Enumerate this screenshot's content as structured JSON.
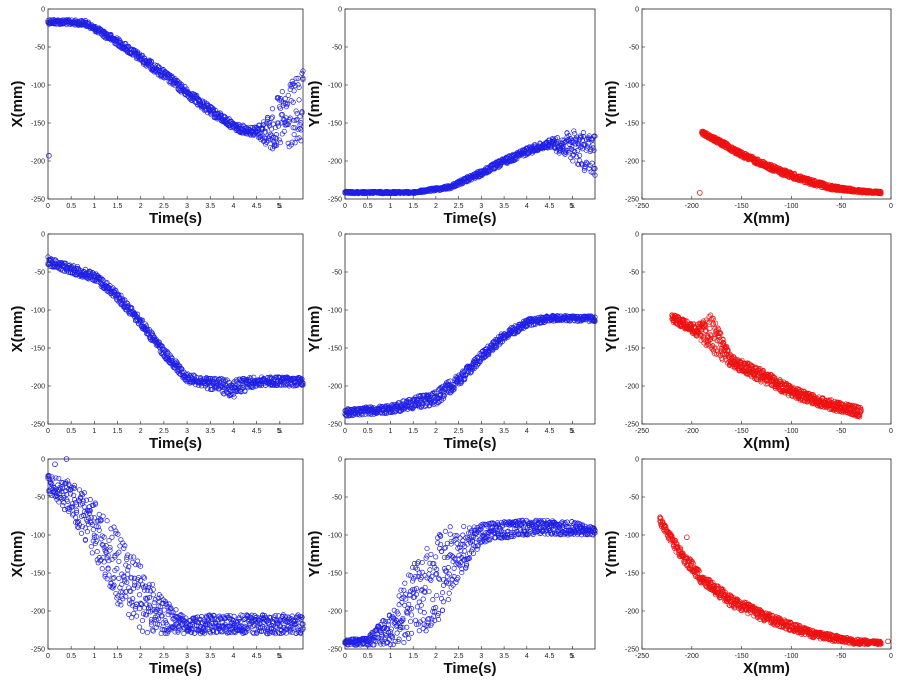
{
  "colors": {
    "time_series": "#1f1fe6",
    "xy": "#ee1111",
    "frame": "#262626"
  },
  "chart_data": [
    {
      "type": "scatter",
      "xlabel": "Time(s)",
      "ylabel": "X(mm)",
      "xlim": [
        0,
        5.5
      ],
      "ylim": [
        -250,
        0
      ],
      "xticks": [
        "0",
        "0.5",
        "1",
        "1.5",
        "2",
        "2.5",
        "3",
        "3.5",
        "4",
        "4.5",
        "5",
        "5."
      ],
      "yticks": [
        "0",
        "-50",
        "-100",
        "-150",
        "-200",
        "-250"
      ],
      "band": [
        [
          0,
          -13,
          -20
        ],
        [
          0.8,
          -15,
          -22
        ],
        [
          1.5,
          -38,
          -48
        ],
        [
          2.5,
          -80,
          -92
        ],
        [
          3.5,
          -128,
          -140
        ],
        [
          4.1,
          -152,
          -162
        ],
        [
          4.5,
          -155,
          -168
        ],
        [
          4.8,
          -135,
          -185
        ],
        [
          5.0,
          -110,
          -188
        ],
        [
          5.5,
          -80,
          -185
        ]
      ],
      "outliers": [
        [
          0.02,
          -193
        ]
      ],
      "series_color": "time_series"
    },
    {
      "type": "scatter",
      "xlabel": "Time(s)",
      "ylabel": "Y(mm)",
      "xlim": [
        0,
        5.5
      ],
      "ylim": [
        -250,
        0
      ],
      "xticks": [
        "0",
        "0.5",
        "1",
        "1.5",
        "2",
        "2.5",
        "3",
        "3.5",
        "4",
        "4.5",
        "5",
        "5."
      ],
      "yticks": [
        "0",
        "-50",
        "-100",
        "-150",
        "-200",
        "-250"
      ],
      "band": [
        [
          0,
          -240,
          -243
        ],
        [
          1.5,
          -240,
          -243
        ],
        [
          2.3,
          -232,
          -237
        ],
        [
          3.0,
          -212,
          -220
        ],
        [
          3.5,
          -196,
          -205
        ],
        [
          4.0,
          -182,
          -192
        ],
        [
          4.5,
          -172,
          -182
        ],
        [
          5.0,
          -160,
          -200
        ],
        [
          5.5,
          -165,
          -225
        ]
      ],
      "outliers": [],
      "series_color": "time_series"
    },
    {
      "type": "scatter",
      "xlabel": "X(mm)",
      "ylabel": "Y(mm)",
      "xlim": [
        -250,
        0
      ],
      "ylim": [
        -250,
        0
      ],
      "xticks": [
        "-250",
        "-200",
        "-150",
        "-100",
        "-50",
        "0"
      ],
      "yticks": [
        "0",
        "-50",
        "-100",
        "-150",
        "-200",
        "-250"
      ],
      "band": [
        [
          -190,
          -160,
          -165
        ],
        [
          -170,
          -173,
          -180
        ],
        [
          -150,
          -188,
          -195
        ],
        [
          -120,
          -205,
          -213
        ],
        [
          -90,
          -220,
          -228
        ],
        [
          -60,
          -232,
          -238
        ],
        [
          -30,
          -238,
          -242
        ],
        [
          -10,
          -240,
          -243
        ]
      ],
      "outliers": [
        [
          -192,
          -242
        ]
      ],
      "series_color": "xy"
    },
    {
      "type": "scatter",
      "xlabel": "Time(s)",
      "ylabel": "X(mm)",
      "xlim": [
        0,
        5.5
      ],
      "ylim": [
        -250,
        0
      ],
      "xticks": [
        "0",
        "0.5",
        "1",
        "1.5",
        "2",
        "2.5",
        "3",
        "3.5",
        "4",
        "4.5",
        "5",
        "5."
      ],
      "yticks": [
        "0",
        "-50",
        "-100",
        "-150",
        "-200",
        "-250"
      ],
      "band": [
        [
          0,
          -30,
          -42
        ],
        [
          1.0,
          -50,
          -62
        ],
        [
          1.5,
          -75,
          -88
        ],
        [
          2.0,
          -110,
          -122
        ],
        [
          2.5,
          -150,
          -162
        ],
        [
          3.0,
          -183,
          -195
        ],
        [
          3.5,
          -190,
          -205
        ],
        [
          4.0,
          -190,
          -215
        ],
        [
          4.5,
          -188,
          -200
        ],
        [
          5.5,
          -188,
          -200
        ]
      ],
      "outliers": [],
      "series_color": "time_series"
    },
    {
      "type": "scatter",
      "xlabel": "Time(s)",
      "ylabel": "Y(mm)",
      "xlim": [
        0,
        5.5
      ],
      "ylim": [
        -250,
        0
      ],
      "xticks": [
        "0",
        "0.5",
        "1",
        "1.5",
        "2",
        "2.5",
        "3",
        "3.5",
        "4",
        "4.5",
        "5",
        "5."
      ],
      "yticks": [
        "0",
        "-50",
        "-100",
        "-150",
        "-200",
        "-250"
      ],
      "band": [
        [
          0,
          -230,
          -240
        ],
        [
          1.0,
          -225,
          -236
        ],
        [
          2.0,
          -205,
          -225
        ],
        [
          2.5,
          -185,
          -200
        ],
        [
          3.0,
          -155,
          -168
        ],
        [
          3.5,
          -128,
          -140
        ],
        [
          4.0,
          -112,
          -122
        ],
        [
          4.5,
          -107,
          -115
        ],
        [
          5.5,
          -108,
          -115
        ]
      ],
      "outliers": [],
      "series_color": "time_series"
    },
    {
      "type": "scatter",
      "xlabel": "X(mm)",
      "ylabel": "Y(mm)",
      "xlim": [
        -250,
        0
      ],
      "ylim": [
        -250,
        0
      ],
      "xticks": [
        "-250",
        "-200",
        "-150",
        "-100",
        "-50",
        "0"
      ],
      "yticks": [
        "0",
        "-50",
        "-100",
        "-150",
        "-200",
        "-250"
      ],
      "band": [
        [
          -220,
          -105,
          -115
        ],
        [
          -195,
          -120,
          -135
        ],
        [
          -180,
          -105,
          -155
        ],
        [
          -160,
          -160,
          -175
        ],
        [
          -130,
          -178,
          -195
        ],
        [
          -100,
          -200,
          -215
        ],
        [
          -70,
          -215,
          -228
        ],
        [
          -30,
          -228,
          -242
        ]
      ],
      "outliers": [],
      "series_color": "xy"
    },
    {
      "type": "scatter",
      "xlabel": "Time(s)",
      "ylabel": "X(mm)",
      "xlim": [
        0,
        5.5
      ],
      "ylim": [
        -250,
        0
      ],
      "xticks": [
        "0",
        "0.5",
        "1",
        "1.5",
        "2",
        "2.5",
        "3",
        "3.5",
        "4",
        "4.5",
        "5",
        "5."
      ],
      "yticks": [
        "0",
        "-50",
        "-100",
        "-150",
        "-200",
        "-250"
      ],
      "band": [
        [
          0,
          -20,
          -45
        ],
        [
          0.5,
          -30,
          -75
        ],
        [
          1.0,
          -55,
          -130
        ],
        [
          1.5,
          -95,
          -190
        ],
        [
          2.0,
          -140,
          -228
        ],
        [
          2.5,
          -185,
          -230
        ],
        [
          3.0,
          -210,
          -230
        ],
        [
          3.5,
          -205,
          -230
        ],
        [
          4.5,
          -205,
          -230
        ],
        [
          5.5,
          -205,
          -230
        ]
      ],
      "outliers": [
        [
          0.4,
          0
        ],
        [
          0.15,
          -7
        ]
      ],
      "series_color": "time_series"
    },
    {
      "type": "scatter",
      "xlabel": "Time(s)",
      "ylabel": "Y(mm)",
      "xlim": [
        0,
        5.5
      ],
      "ylim": [
        -250,
        0
      ],
      "xticks": [
        "0",
        "0.5",
        "1",
        "1.5",
        "2",
        "2.5",
        "3",
        "3.5",
        "4",
        "4.5",
        "5",
        "5."
      ],
      "yticks": [
        "0",
        "-50",
        "-100",
        "-150",
        "-200",
        "-250"
      ],
      "band": [
        [
          0,
          -238,
          -245
        ],
        [
          0.5,
          -235,
          -245
        ],
        [
          1.0,
          -200,
          -245
        ],
        [
          1.5,
          -140,
          -240
        ],
        [
          2.0,
          -90,
          -220
        ],
        [
          2.5,
          -88,
          -160
        ],
        [
          3.0,
          -85,
          -110
        ],
        [
          4.0,
          -80,
          -100
        ],
        [
          5.0,
          -82,
          -100
        ],
        [
          5.5,
          -90,
          -100
        ]
      ],
      "outliers": [],
      "series_color": "time_series"
    },
    {
      "type": "scatter",
      "xlabel": "X(mm)",
      "ylabel": "Y(mm)",
      "xlim": [
        -250,
        0
      ],
      "ylim": [
        -250,
        0
      ],
      "xticks": [
        "-250",
        "-200",
        "-150",
        "-100",
        "-50",
        "0"
      ],
      "yticks": [
        "0",
        "-50",
        "-100",
        "-150",
        "-200",
        "-250"
      ],
      "band": [
        [
          -232,
          -76,
          -85
        ],
        [
          -215,
          -110,
          -125
        ],
        [
          -190,
          -150,
          -165
        ],
        [
          -160,
          -180,
          -195
        ],
        [
          -120,
          -205,
          -218
        ],
        [
          -80,
          -225,
          -235
        ],
        [
          -40,
          -236,
          -244
        ],
        [
          -10,
          -240,
          -244
        ]
      ],
      "outliers": [
        [
          -205,
          -103
        ],
        [
          -3,
          -240
        ]
      ],
      "series_color": "xy"
    }
  ]
}
